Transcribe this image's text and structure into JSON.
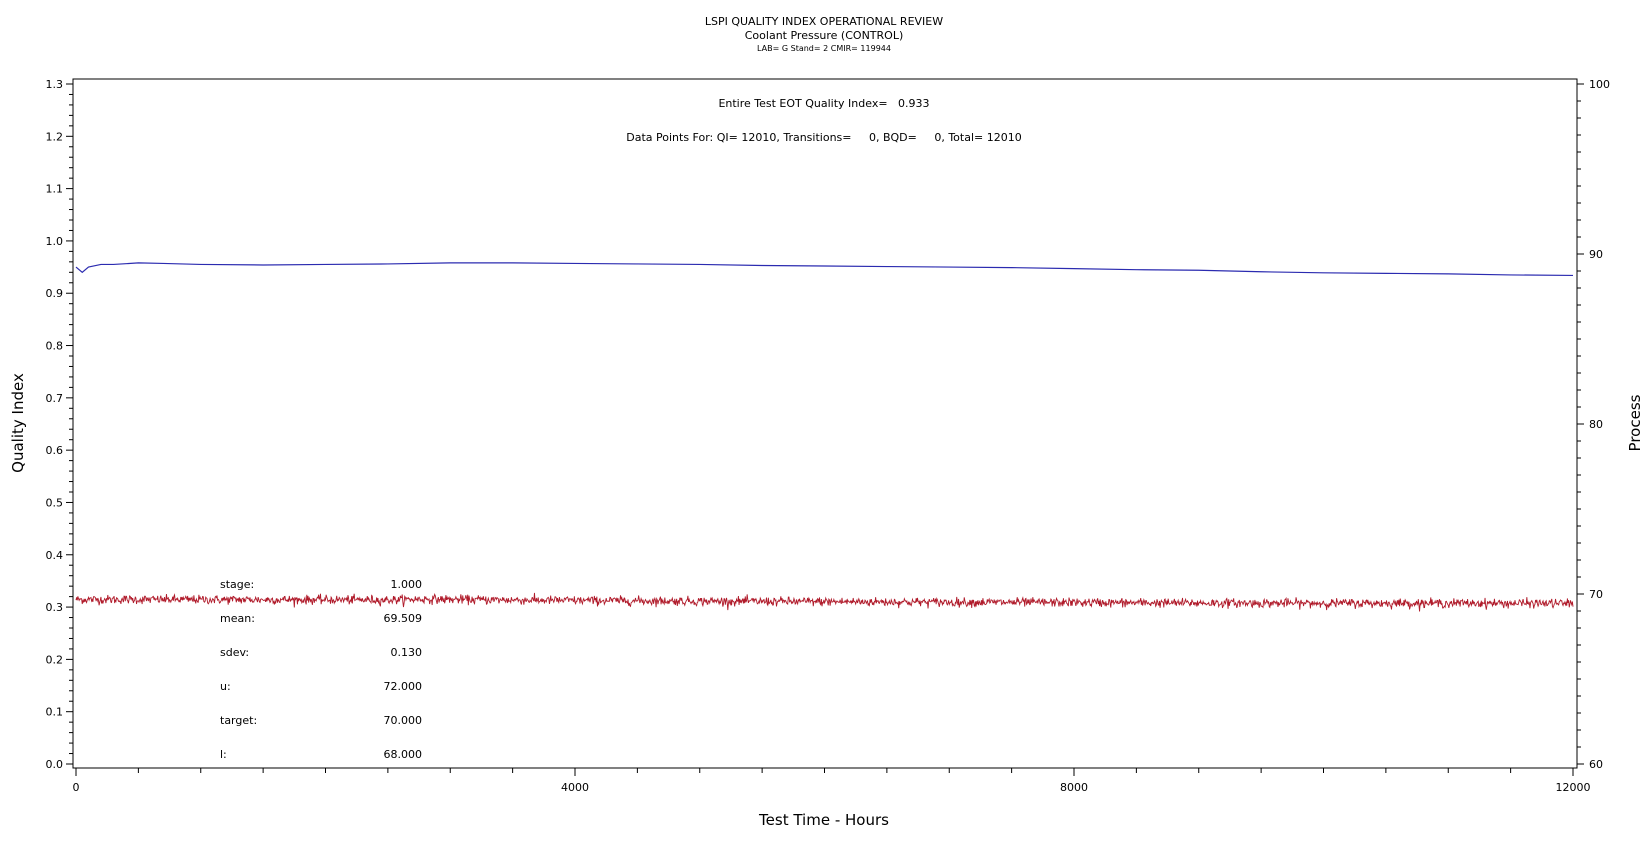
{
  "chart_data": {
    "type": "line",
    "title": "LSPI QUALITY INDEX OPERATIONAL REVIEW",
    "subtitle": "Coolant Pressure (CONTROL)",
    "subtitle2": "LAB= G Stand= 2 CMIR= 119944",
    "xlabel": "Test Time - Hours",
    "ylabel": "Quality Index",
    "y2label": "Process",
    "xlim": [
      0,
      12000
    ],
    "ylim": [
      0.0,
      1.3
    ],
    "y2lim": [
      60,
      100
    ],
    "xticks": [
      "0",
      "4000",
      "8000",
      "12000"
    ],
    "yticks": [
      "0.0",
      "0.1",
      "0.2",
      "0.3",
      "0.4",
      "0.5",
      "0.6",
      "0.7",
      "0.8",
      "0.9",
      "1.0",
      "1.1",
      "1.2",
      "1.3"
    ],
    "y2ticks": [
      "60",
      "70",
      "80",
      "90",
      "100"
    ],
    "annotations": {
      "eot": "Entire Test EOT Quality Index=   0.933",
      "points": "Data Points For: QI= 12010, Transitions=     0, BQD=     0, Total= 12010"
    },
    "stats": [
      {
        "label": "stage:",
        "value": "1.000"
      },
      {
        "label": "mean:",
        "value": "69.509"
      },
      {
        "label": "sdev:",
        "value": "0.130"
      },
      {
        "label": "u:",
        "value": "72.000"
      },
      {
        "label": "target:",
        "value": "70.000"
      },
      {
        "label": "l:",
        "value": "68.000"
      }
    ],
    "series": [
      {
        "axis": "left",
        "color": "#2b2bb0",
        "x": [
          0,
          50,
          100,
          200,
          300,
          500,
          700,
          1000,
          1500,
          2000,
          2500,
          3000,
          3500,
          4000,
          4500,
          5000,
          5500,
          6000,
          6500,
          7000,
          7500,
          8000,
          8500,
          9000,
          9500,
          10000,
          10500,
          11000,
          11500,
          12000
        ],
        "values": [
          0.95,
          0.94,
          0.95,
          0.955,
          0.955,
          0.958,
          0.957,
          0.955,
          0.954,
          0.955,
          0.956,
          0.958,
          0.958,
          0.957,
          0.956,
          0.955,
          0.953,
          0.952,
          0.951,
          0.95,
          0.949,
          0.947,
          0.945,
          0.944,
          0.941,
          0.939,
          0.938,
          0.937,
          0.935,
          0.934
        ]
      },
      {
        "axis": "right",
        "color": "#b01a2a",
        "x": [
          0,
          1000,
          2000,
          2500,
          2800,
          3000,
          4000,
          5000,
          6000,
          7000,
          8000,
          9000,
          10000,
          11000,
          12000
        ],
        "values": [
          69.68,
          69.67,
          69.66,
          69.65,
          69.7,
          69.68,
          69.62,
          69.58,
          69.55,
          69.52,
          69.5,
          69.47,
          69.46,
          69.46,
          69.45
        ],
        "noise_sdev": 0.13
      }
    ]
  }
}
